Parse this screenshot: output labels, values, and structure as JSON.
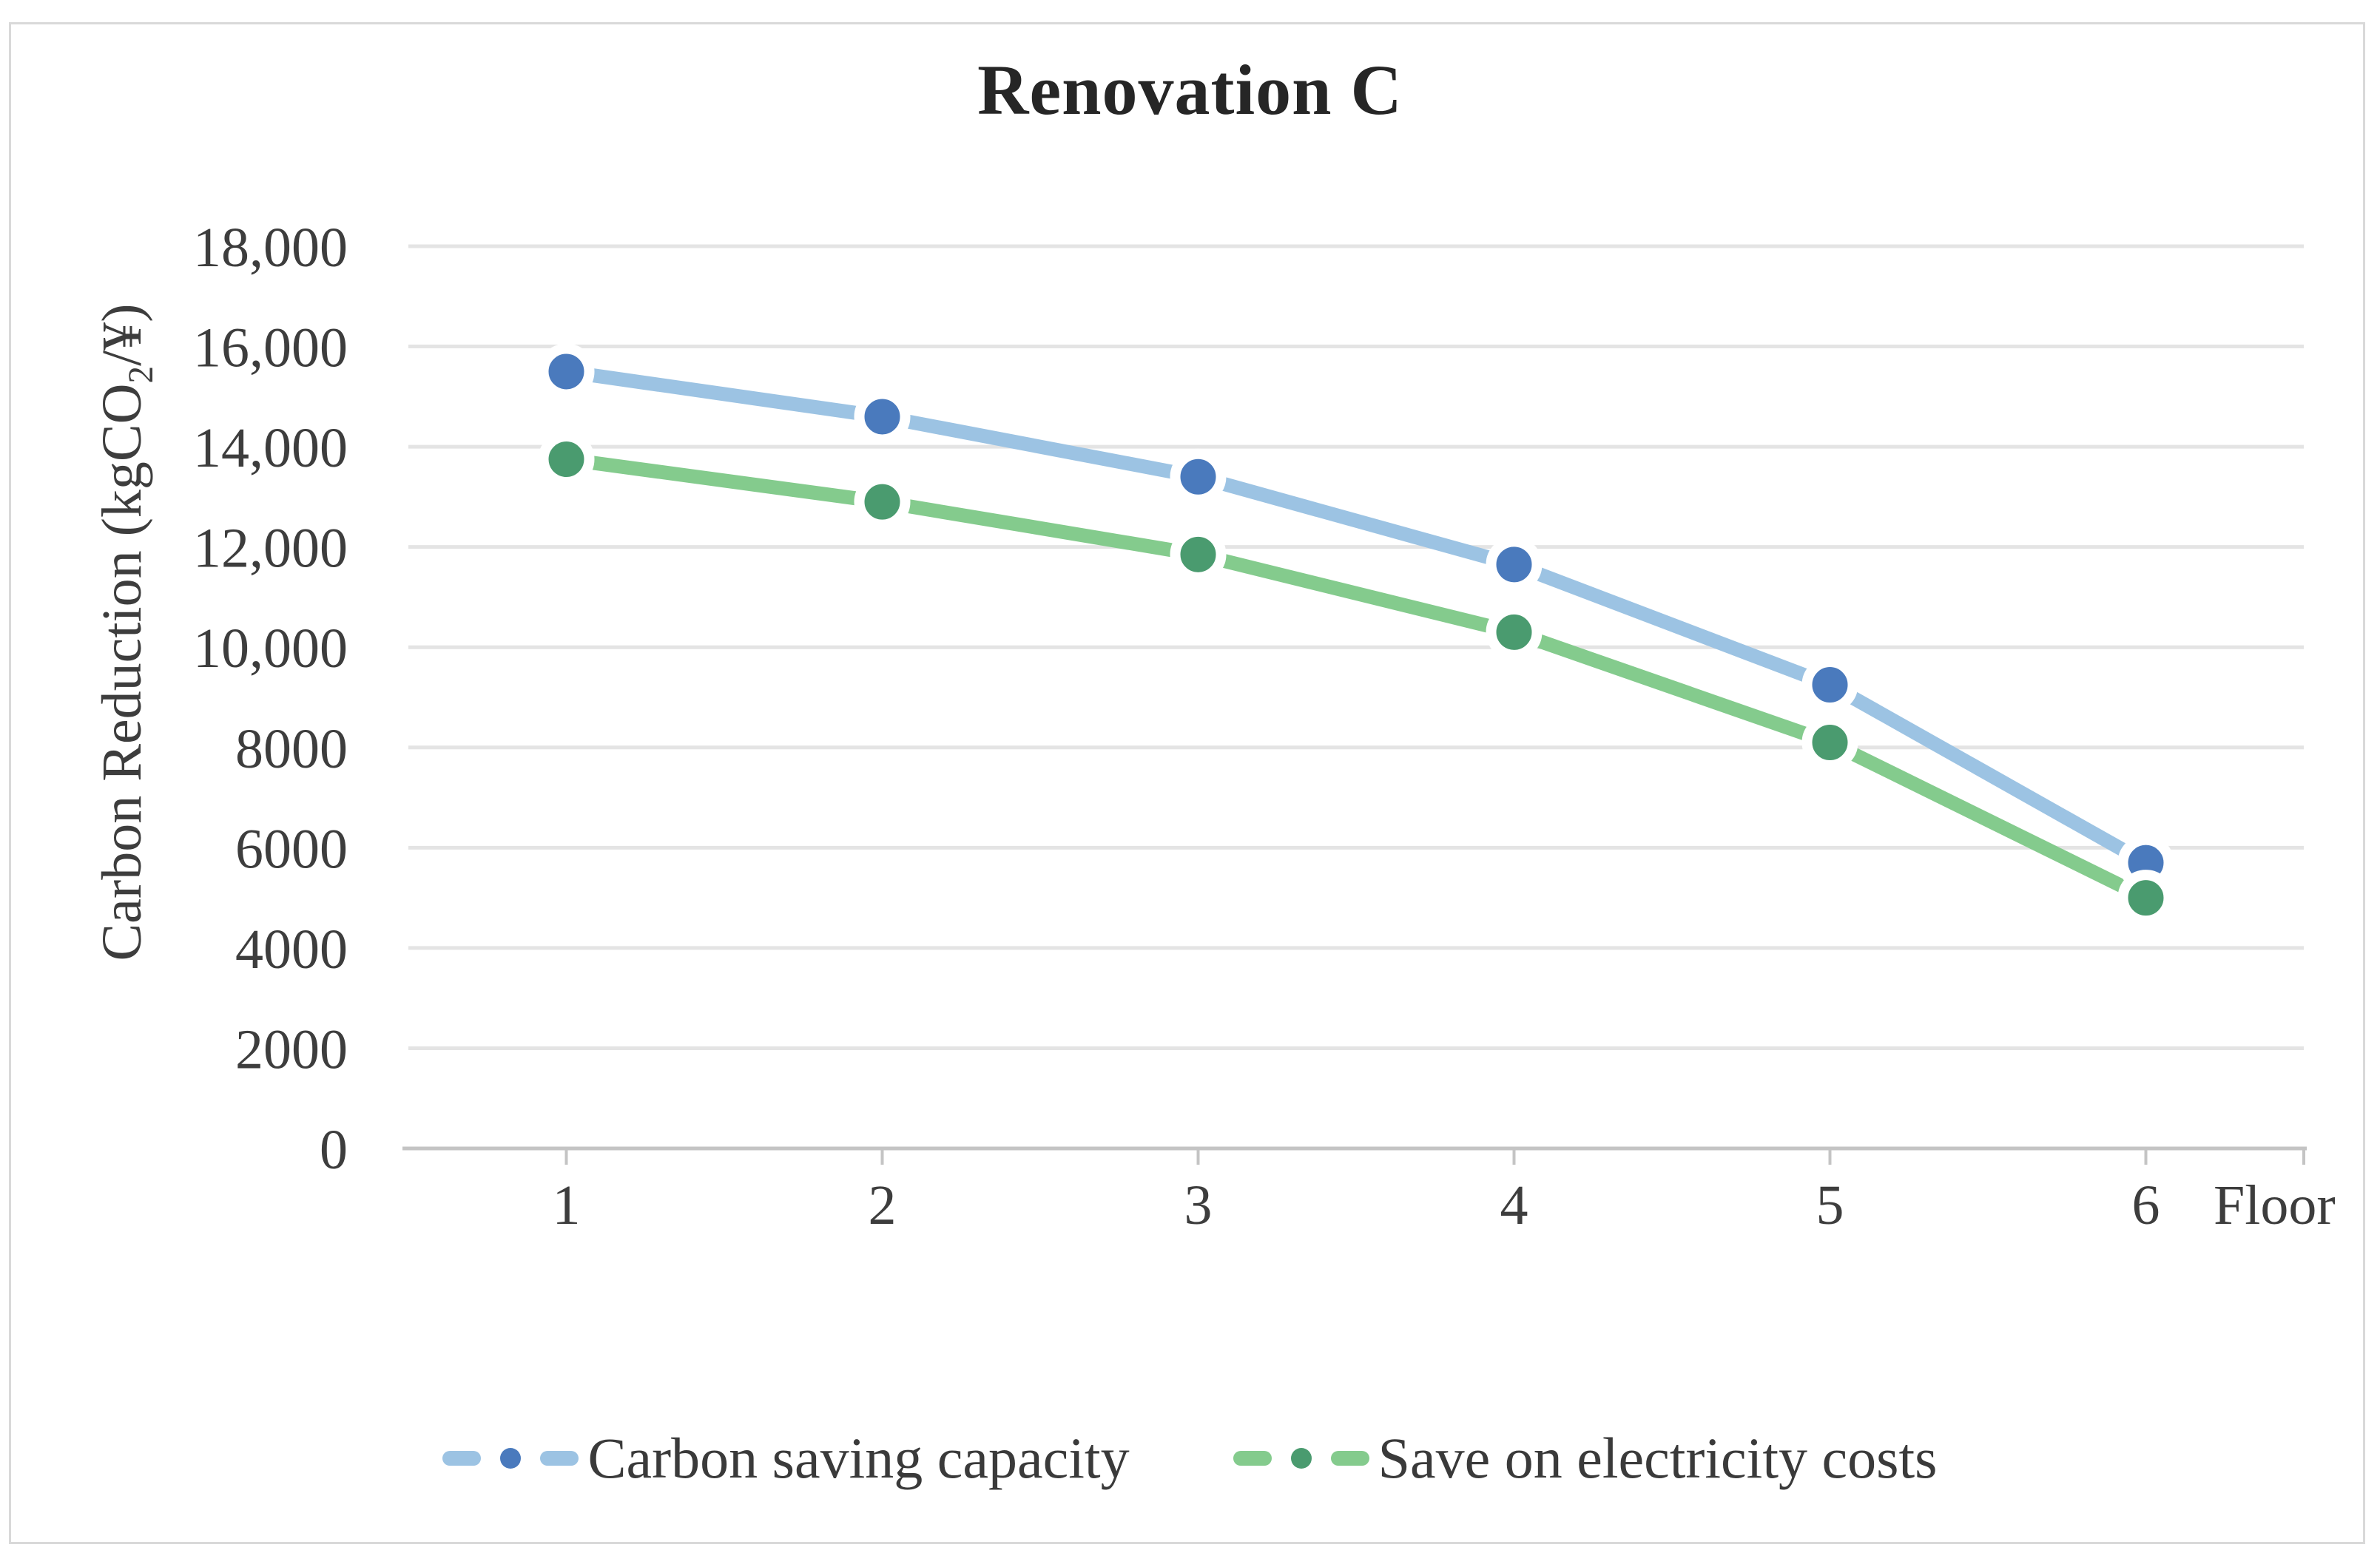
{
  "title": "Renovation C",
  "y_axis": {
    "title_prefix": "Carbon Reduction (kgCO",
    "title_sub": "2",
    "title_suffix": "/¥)"
  },
  "x_axis": {
    "title": "Floor"
  },
  "chart_data": {
    "type": "line",
    "title": "Renovation C",
    "xlabel": "Floor",
    "ylabel": "Carbon Reduction (kgCO2/¥)",
    "categories": [
      "1",
      "2",
      "3",
      "4",
      "5",
      "6"
    ],
    "series": [
      {
        "name": "Carbon saving capacity",
        "values": [
          15500,
          14600,
          13400,
          11650,
          9250,
          5700
        ],
        "line_color": "#9cc3e3",
        "marker_color": "#4a7abd"
      },
      {
        "name": "Save on electricity costs",
        "values": [
          13750,
          12900,
          11850,
          10300,
          8100,
          5000
        ],
        "line_color": "#84cb8d",
        "marker_color": "#4a9b6f"
      }
    ],
    "ylim": [
      0,
      18000
    ],
    "ytick_values": [
      0,
      2000,
      4000,
      6000,
      8000,
      10000,
      12000,
      14000,
      16000,
      18000
    ],
    "ytick_labels": [
      "0",
      "2000",
      "4000",
      "6000",
      "8000",
      "10,000",
      "12,000",
      "14,000",
      "16,000",
      "18,000"
    ],
    "grid": true,
    "legend_position": "bottom",
    "colors": {
      "gridline": "#e4e4e4",
      "axis_line": "#c4c4c4",
      "tick": "#c4c4c4",
      "label_text": "#3d3d3d"
    }
  }
}
